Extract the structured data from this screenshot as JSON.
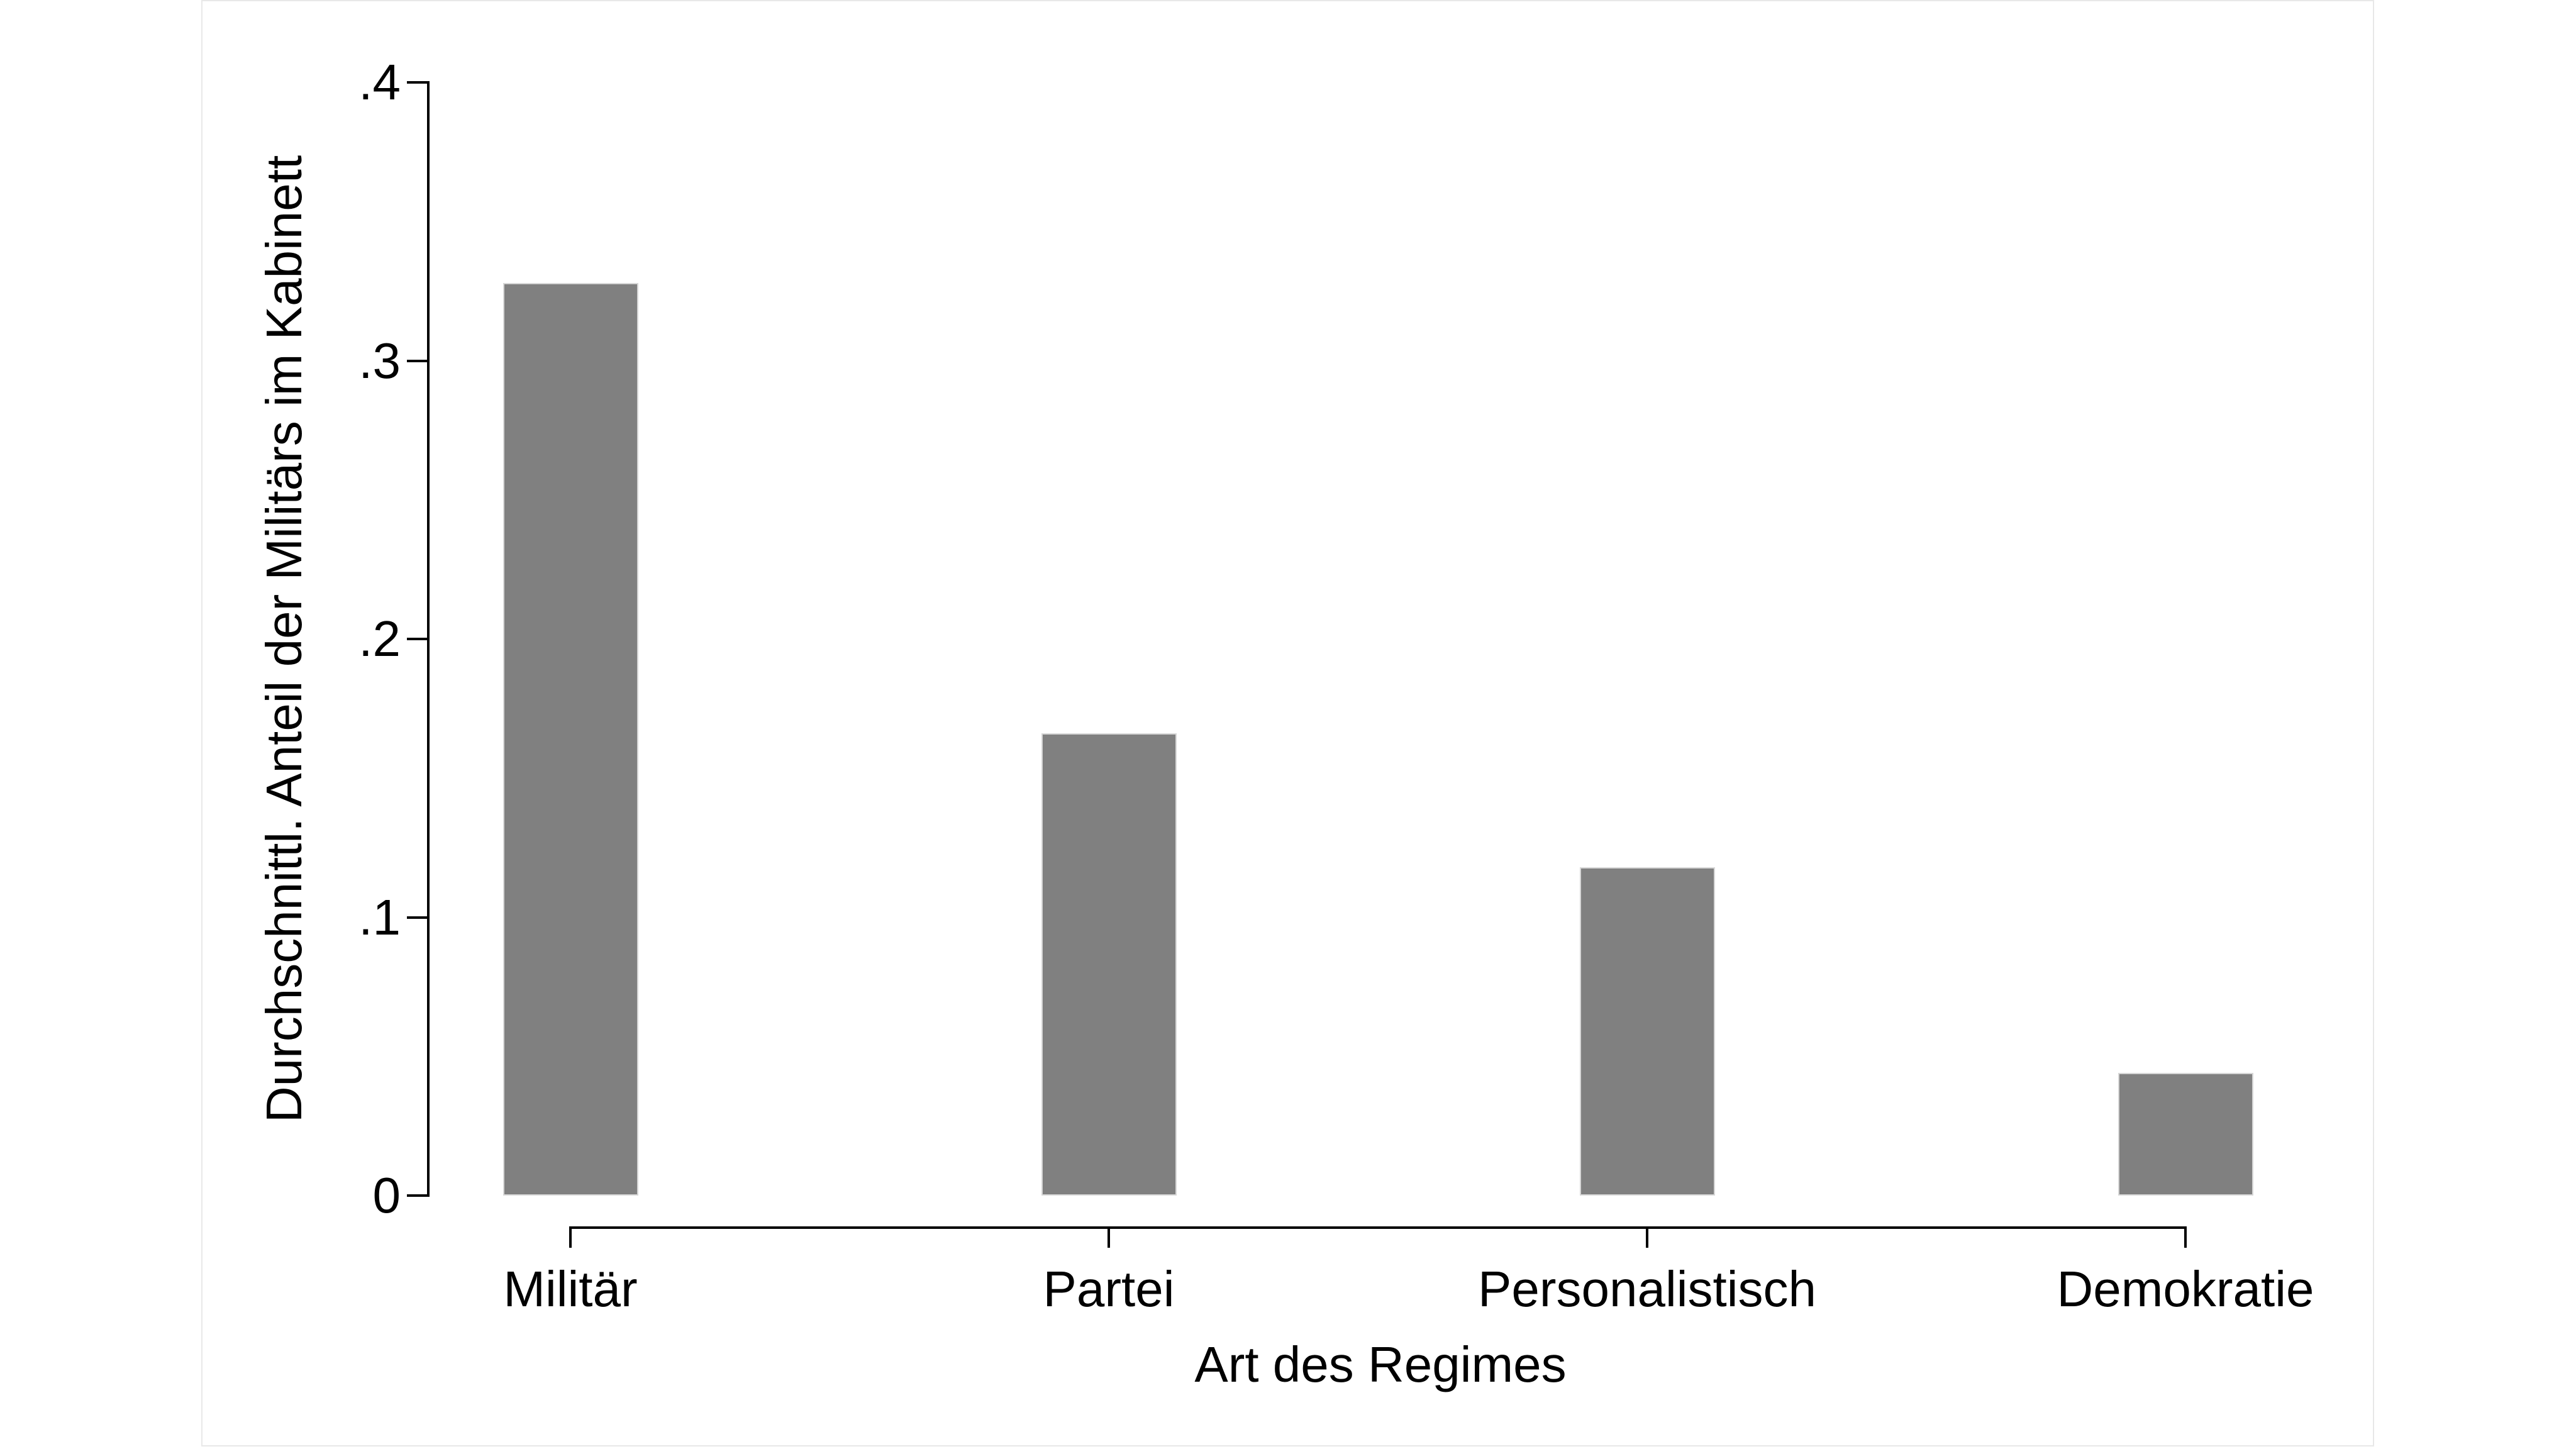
{
  "figure": {
    "background_color": "#ffffff",
    "border_color": "#e8e8e8",
    "axis_color": "#000000",
    "text_color": "#000000"
  },
  "chart_data": {
    "type": "bar",
    "categories": [
      "Militär",
      "Partei",
      "Personalistisch",
      "Demokratie"
    ],
    "values": [
      0.328,
      0.166,
      0.118,
      0.044
    ],
    "xlabel": "Art des Regimes",
    "ylabel": "Durchschnittl. Anteil der Militärs im Kabinett",
    "ylim": [
      0,
      0.4
    ],
    "yticks": [
      {
        "value": 0.0,
        "label": "0"
      },
      {
        "value": 0.1,
        "label": ".1"
      },
      {
        "value": 0.2,
        "label": ".2"
      },
      {
        "value": 0.3,
        "label": ".3"
      },
      {
        "value": 0.4,
        "label": ".4"
      }
    ],
    "bar_color": "#808080",
    "bar_edge_color": "#d6d6d6",
    "grid": "off",
    "legend": "none"
  }
}
